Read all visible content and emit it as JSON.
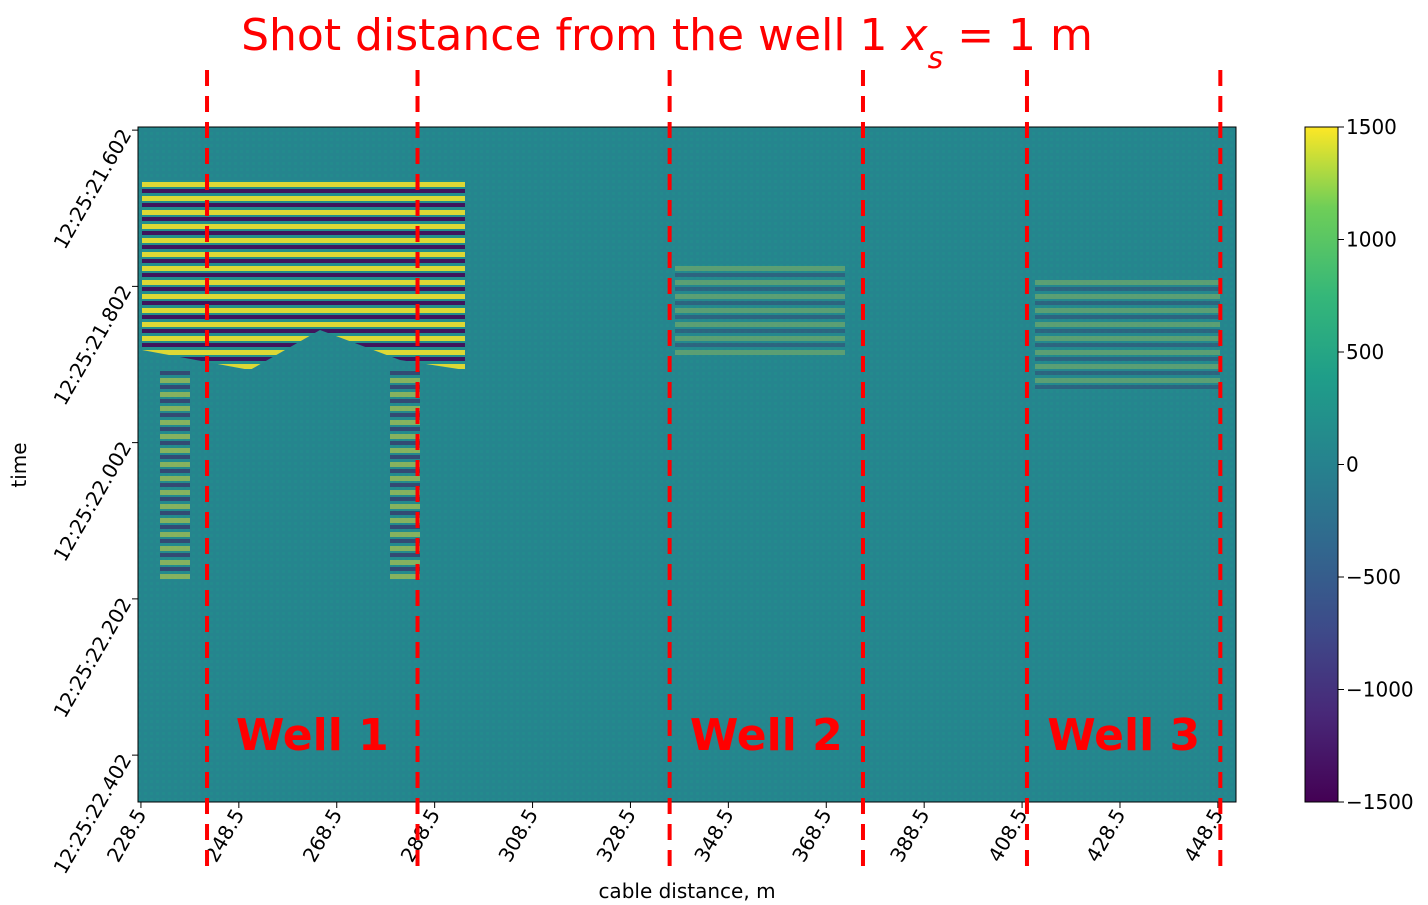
{
  "chart_data": {
    "type": "heatmap",
    "title": [
      "Shot distance from the well 1 ",
      "x",
      "s",
      " = 1 m"
    ],
    "xlabel": "cable distance, m",
    "ylabel": "time",
    "xlim": [
      227.9,
      452.2
    ],
    "xticks": [
      228.5,
      248.5,
      268.5,
      288.5,
      308.5,
      328.5,
      348.5,
      368.5,
      388.5,
      408.5,
      428.5,
      448.5
    ],
    "ylim": [
      44721.598,
      44722.462
    ],
    "y_inverted": true,
    "yticks": [
      {
        "value": 44721.602,
        "label": "12:25:21.602"
      },
      {
        "value": 44721.802,
        "label": "12:25:21.802"
      },
      {
        "value": 44722.002,
        "label": "12:25:22.002"
      },
      {
        "value": 44722.202,
        "label": "12:25:22.202"
      },
      {
        "value": 44722.402,
        "label": "12:25:22.402"
      }
    ],
    "colormap": "viridis",
    "clim": [
      -1500,
      1500
    ],
    "cticks": [
      {
        "value": -1500,
        "label": "−1500"
      },
      {
        "value": -1000,
        "label": "−1000"
      },
      {
        "value": -500,
        "label": "−500"
      },
      0,
      500,
      1000,
      1500
    ],
    "vlines": [
      242,
      285,
      336.5,
      376,
      409.5,
      449
    ],
    "vline_color": "#ff0000",
    "annotations": [
      "Well 1",
      "Well 2",
      "Well 3"
    ]
  }
}
